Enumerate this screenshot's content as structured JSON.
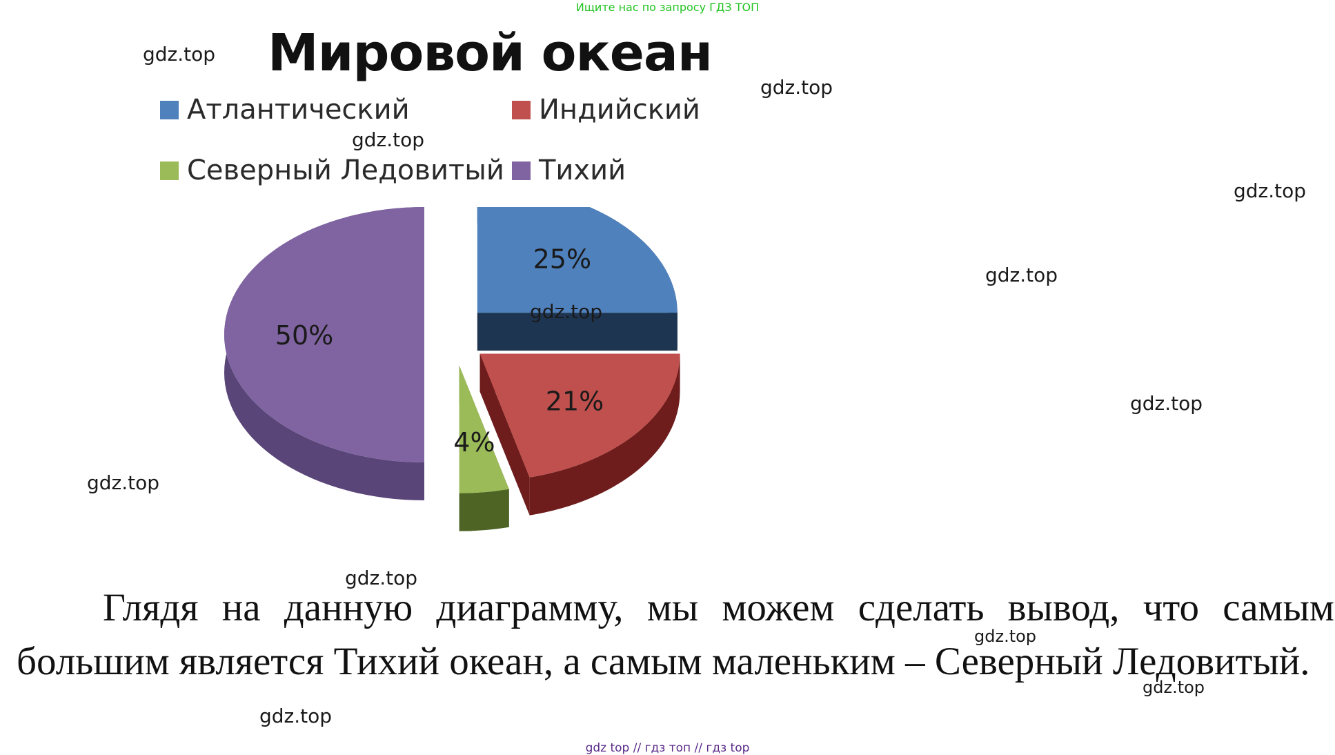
{
  "banner": "Ищите нас по запросу ГДЗ ТОП",
  "chart_data": {
    "type": "pie",
    "title": "Мировой океан",
    "legend_position": "top",
    "categories": [
      "Атлантический",
      "Индийский",
      "Северный Ледовитый",
      "Тихий"
    ],
    "values": [
      25,
      21,
      4,
      50
    ],
    "value_labels": [
      "25%",
      "21%",
      "4%",
      "50%"
    ],
    "colors": [
      "#4f81bd",
      "#c0504d",
      "#9bbb59",
      "#8064a2"
    ],
    "side_colors": [
      "#1e3552",
      "#6e1c1c",
      "#4e6424",
      "#5a4578"
    ],
    "exploded": true,
    "style": "3d"
  },
  "watermarks": [
    "gdz.top",
    "gdz.top",
    "gdz.top",
    "gdz.top",
    "gdz.top",
    "gdz.top",
    "gdz.top",
    "gdz.top",
    "gdz.top",
    "gdz.top",
    "gdz.top",
    "gdz.top"
  ],
  "conclusion": "Глядя на данную диаграмму, мы можем сделать вывод, что самым большим является Тихий океан, а самым маленьким – Северный Ледовитый.",
  "footer_links": "gdz top  //  гдз топ  //  гдз top"
}
